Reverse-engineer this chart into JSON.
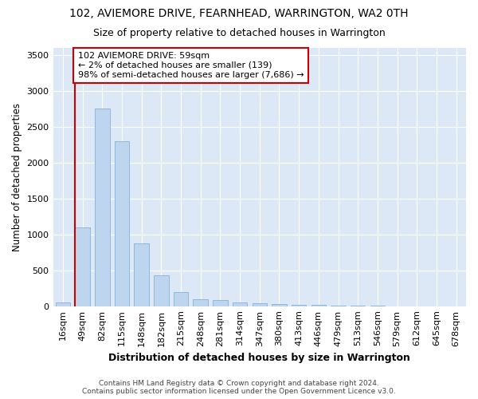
{
  "title": "102, AVIEMORE DRIVE, FEARNHEAD, WARRINGTON, WA2 0TH",
  "subtitle": "Size of property relative to detached houses in Warrington",
  "xlabel": "Distribution of detached houses by size in Warrington",
  "ylabel": "Number of detached properties",
  "categories": [
    "16sqm",
    "49sqm",
    "82sqm",
    "115sqm",
    "148sqm",
    "182sqm",
    "215sqm",
    "248sqm",
    "281sqm",
    "314sqm",
    "347sqm",
    "380sqm",
    "413sqm",
    "446sqm",
    "479sqm",
    "513sqm",
    "546sqm",
    "579sqm",
    "612sqm",
    "645sqm",
    "678sqm"
  ],
  "values": [
    55,
    1100,
    2750,
    2300,
    880,
    430,
    200,
    100,
    85,
    55,
    45,
    30,
    20,
    15,
    10,
    5,
    3,
    2,
    1,
    1,
    0
  ],
  "bar_color": "#bdd5ee",
  "bar_edge_color": "#8db8dc",
  "vline_x_idx": 1,
  "vline_color": "#cc0000",
  "annotation_text": "102 AVIEMORE DRIVE: 59sqm\n← 2% of detached houses are smaller (139)\n98% of semi-detached houses are larger (7,686) →",
  "annotation_box_color": "#ffffff",
  "annotation_box_edge": "#cc0000",
  "ylim": [
    0,
    3600
  ],
  "yticks": [
    0,
    500,
    1000,
    1500,
    2000,
    2500,
    3000,
    3500
  ],
  "plot_bg_color": "#dce8f5",
  "fig_bg_color": "#ffffff",
  "footer_line1": "Contains HM Land Registry data © Crown copyright and database right 2024.",
  "footer_line2": "Contains public sector information licensed under the Open Government Licence v3.0.",
  "title_fontsize": 10,
  "subtitle_fontsize": 9,
  "xlabel_fontsize": 9,
  "ylabel_fontsize": 8.5,
  "tick_fontsize": 8,
  "annot_fontsize": 8,
  "footer_fontsize": 6.5
}
